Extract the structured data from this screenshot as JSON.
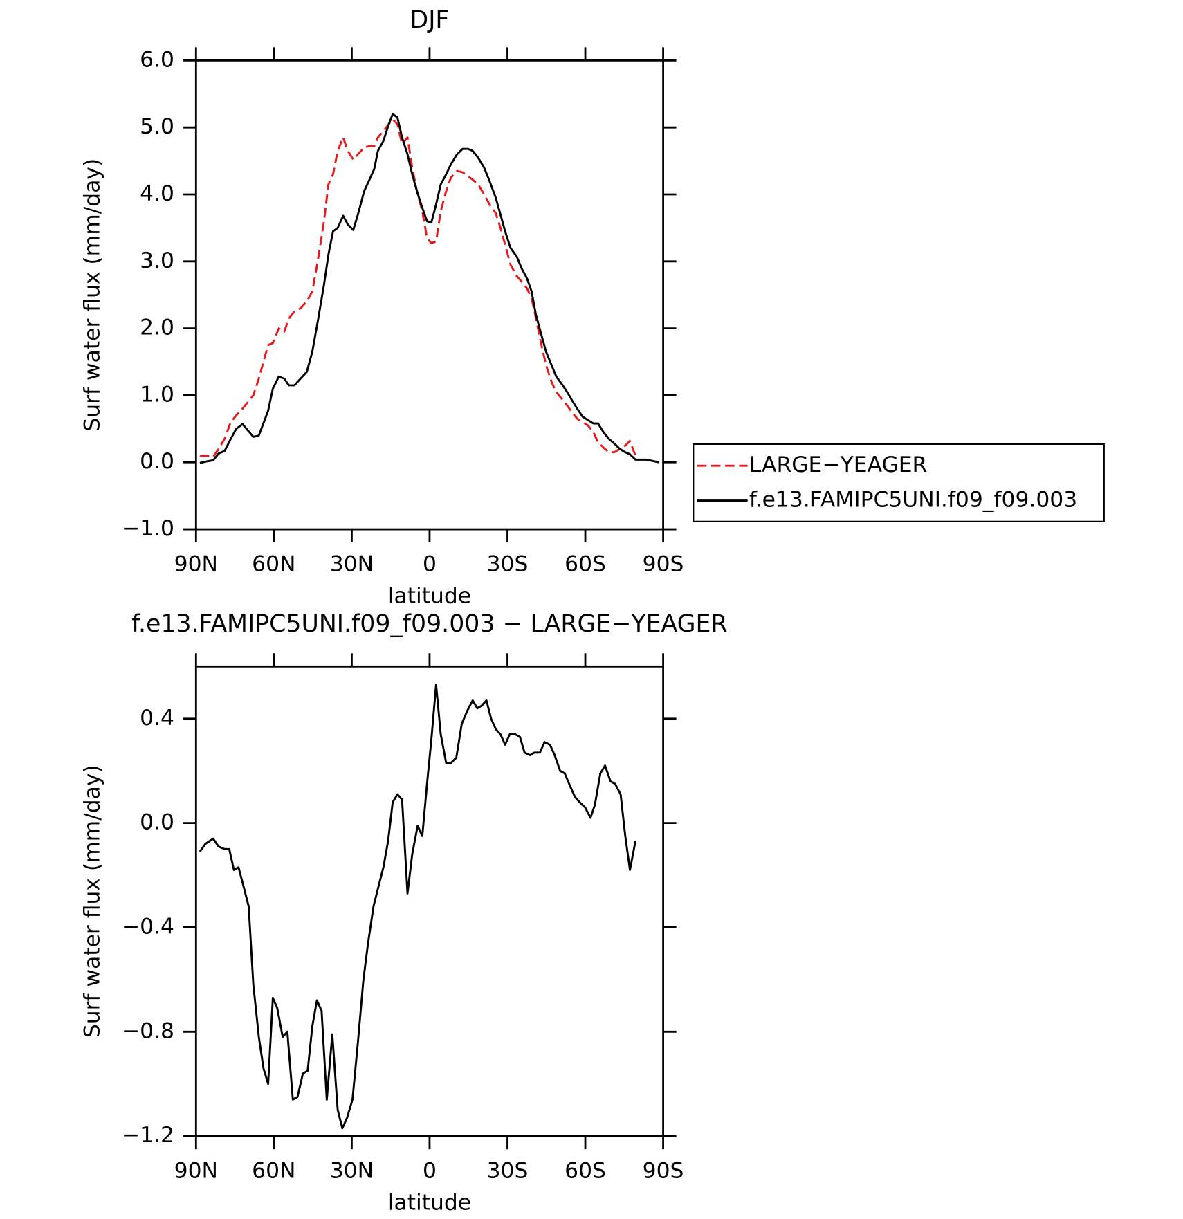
{
  "chart_data": [
    {
      "type": "line",
      "title": "DJF",
      "x_label": "latitude",
      "y_label": "Surf water flux (mm/day)",
      "xlim": [
        90,
        -90
      ],
      "xticks": [
        {
          "value": 90,
          "label": "90N"
        },
        {
          "value": 60,
          "label": "60N"
        },
        {
          "value": 30,
          "label": "30N"
        },
        0,
        {
          "value": -30,
          "label": "30S"
        },
        {
          "value": -60,
          "label": "60S"
        },
        {
          "value": -90,
          "label": "90S"
        }
      ],
      "ylim": [
        -1,
        6
      ],
      "yticks": [
        {
          "value": -1,
          "label": "−1.0"
        },
        {
          "value": 0,
          "label": "0.0"
        },
        {
          "value": 1,
          "label": "1.0"
        },
        {
          "value": 2,
          "label": "2.0"
        },
        {
          "value": 3,
          "label": "3.0"
        },
        {
          "value": 4,
          "label": "4.0"
        },
        {
          "value": 5,
          "label": "5.0"
        },
        {
          "value": 6,
          "label": "6.0"
        }
      ],
      "legend": "right",
      "x": [
        88.5,
        86.4,
        83.4,
        81.3,
        79,
        76.6,
        74.5,
        72.1,
        67.9,
        65.8,
        62.2,
        60.4,
        58.1,
        56,
        54.2,
        52.1,
        49.7,
        47.3,
        45.2,
        43.1,
        40.7,
        39,
        37.2,
        35.4,
        33.3,
        31.5,
        29.4,
        27.6,
        25.2,
        23.4,
        21.3,
        19.9,
        17.8,
        15.7,
        14.2,
        12.4,
        10.6,
        8.5,
        6.7,
        4.9,
        2.8,
        1,
        -0.7,
        -2.5,
        -4.3,
        -6.4,
        -8.2,
        -10.6,
        -12.7,
        -14.8,
        -16.6,
        -18.7,
        -21,
        -23.1,
        -25.5,
        -27.3,
        -29.1,
        -31.2,
        -33.6,
        -35.4,
        -37.5,
        -39.3,
        -41,
        -43.1,
        -44.9,
        -47,
        -48.8,
        -50.9,
        -53,
        -54.8,
        -56.9,
        -59,
        -61,
        -63.1,
        -64.9,
        -67,
        -69.1,
        -71.2,
        -73.3,
        -75.4,
        -77.2,
        -79.3,
        -83.4,
        -88.5
      ],
      "series": [
        {
          "name": "LARGE−YEAGER",
          "color": "#e41a1c",
          "linestyle": "dashed",
          "values": [
            0.1,
            0.1,
            0.08,
            0.2,
            0.35,
            0.6,
            0.7,
            0.8,
            1.0,
            1.25,
            1.75,
            1.78,
            2.0,
            1.95,
            2.15,
            2.25,
            2.3,
            2.4,
            2.55,
            3.0,
            3.6,
            4.15,
            4.3,
            4.65,
            4.85,
            4.65,
            4.52,
            4.6,
            4.7,
            4.72,
            4.72,
            4.85,
            4.95,
            5.05,
            5.12,
            5.05,
            4.75,
            4.85,
            4.4,
            4.05,
            3.75,
            3.35,
            3.27,
            3.3,
            3.75,
            4.05,
            4.25,
            4.35,
            4.33,
            4.27,
            4.22,
            4.15,
            4.0,
            3.85,
            3.72,
            3.5,
            3.25,
            2.95,
            2.78,
            2.7,
            2.6,
            2.45,
            2.15,
            1.75,
            1.45,
            1.2,
            1.05,
            0.95,
            0.85,
            0.75,
            0.65,
            0.6,
            0.55,
            0.45,
            0.3,
            0.22,
            0.15,
            0.15,
            0.2,
            0.25,
            0.32,
            0.1,
            null,
            null
          ]
        },
        {
          "name": "f.e13.FAMIPC5UNI.f09_f09.003",
          "color": "#000000",
          "linestyle": "solid",
          "values": [
            -0.01,
            0.01,
            0.03,
            0.13,
            0.17,
            0.35,
            0.5,
            0.57,
            0.38,
            0.4,
            0.77,
            1.1,
            1.28,
            1.25,
            1.15,
            1.15,
            1.25,
            1.35,
            1.65,
            2.1,
            2.65,
            3.1,
            3.45,
            3.5,
            3.68,
            3.55,
            3.47,
            3.7,
            4.05,
            4.2,
            4.38,
            4.65,
            4.8,
            5.05,
            5.2,
            5.15,
            4.85,
            4.6,
            4.3,
            4.05,
            3.8,
            3.6,
            3.58,
            3.85,
            4.15,
            4.3,
            4.45,
            4.6,
            4.68,
            4.68,
            4.65,
            4.55,
            4.4,
            4.2,
            3.95,
            3.7,
            3.45,
            3.2,
            3.07,
            2.9,
            2.75,
            2.55,
            2.2,
            1.9,
            1.65,
            1.45,
            1.28,
            1.17,
            1.05,
            0.93,
            0.8,
            0.68,
            0.63,
            0.58,
            0.58,
            0.45,
            0.35,
            0.28,
            0.2,
            0.15,
            0.12,
            0.04,
            0.04,
            0.0
          ]
        }
      ]
    },
    {
      "type": "line",
      "title": "f.e13.FAMIPC5UNI.f09_f09.003 − LARGE−YEAGER",
      "x_label": "latitude",
      "y_label": "Surf water flux (mm/day)",
      "xlim": [
        90,
        -90
      ],
      "xticks": [
        {
          "value": 90,
          "label": "90N"
        },
        {
          "value": 60,
          "label": "60N"
        },
        {
          "value": 30,
          "label": "30N"
        },
        0,
        {
          "value": -30,
          "label": "30S"
        },
        {
          "value": -60,
          "label": "60S"
        },
        {
          "value": -90,
          "label": "90S"
        }
      ],
      "ylim": [
        -1.2,
        0.6
      ],
      "yticks": [
        {
          "value": -1.2,
          "label": "−1.2"
        },
        {
          "value": -0.8,
          "label": "−0.8"
        },
        {
          "value": -0.4,
          "label": "−0.4"
        },
        {
          "value": 0,
          "label": "0.0"
        },
        0.4
      ],
      "x": [
        88.5,
        86.4,
        83.4,
        81.3,
        79,
        77.2,
        75.4,
        73.6,
        71.5,
        69.7,
        67.9,
        65.8,
        64,
        62.2,
        60.4,
        58.7,
        56.6,
        54.8,
        52.7,
        50.9,
        48.8,
        47,
        45.2,
        43.4,
        41.6,
        39.6,
        37.5,
        35.4,
        33.6,
        31.8,
        29.7,
        27.6,
        25.5,
        23.7,
        21.6,
        19.6,
        17.8,
        16,
        14.2,
        12.4,
        10.6,
        8.5,
        6.7,
        4.6,
        2.8,
        1,
        -0.7,
        -2.5,
        -4.3,
        -6.4,
        -8.2,
        -10.3,
        -12.4,
        -14.5,
        -16.6,
        -18.4,
        -20.1,
        -21.9,
        -23.7,
        -25.5,
        -27.3,
        -29.1,
        -30.9,
        -33,
        -34.8,
        -36.6,
        -38.7,
        -40.4,
        -42.5,
        -44.3,
        -46.4,
        -48.2,
        -50.3,
        -52.1,
        -54.2,
        -56,
        -57.8,
        -59.9,
        -62,
        -63.7,
        -65.8,
        -67.6,
        -69.7,
        -71.5,
        -73.6,
        -75.4,
        -77.2,
        -79.3
      ],
      "series": [
        {
          "color": "#000000",
          "linestyle": "solid",
          "values": [
            -0.11,
            -0.08,
            -0.06,
            -0.09,
            -0.1,
            -0.1,
            -0.18,
            -0.17,
            -0.25,
            -0.32,
            -0.62,
            -0.82,
            -0.94,
            -1.0,
            -0.67,
            -0.71,
            -0.82,
            -0.8,
            -1.06,
            -1.05,
            -0.96,
            -0.95,
            -0.78,
            -0.68,
            -0.72,
            -1.06,
            -0.81,
            -1.1,
            -1.17,
            -1.13,
            -1.06,
            -0.84,
            -0.6,
            -0.46,
            -0.32,
            -0.24,
            -0.17,
            -0.07,
            0.08,
            0.11,
            0.09,
            -0.27,
            -0.12,
            -0.01,
            -0.05,
            0.15,
            0.32,
            0.53,
            0.34,
            0.23,
            0.23,
            0.25,
            0.38,
            0.43,
            0.47,
            0.44,
            0.45,
            0.47,
            0.4,
            0.36,
            0.34,
            0.3,
            0.34,
            0.34,
            0.33,
            0.27,
            0.26,
            0.27,
            0.27,
            0.31,
            0.3,
            0.26,
            0.2,
            0.19,
            0.14,
            0.1,
            0.08,
            0.06,
            0.02,
            0.07,
            0.19,
            0.22,
            0.16,
            0.15,
            0.11,
            -0.05,
            -0.18,
            -0.07
          ]
        }
      ]
    }
  ]
}
